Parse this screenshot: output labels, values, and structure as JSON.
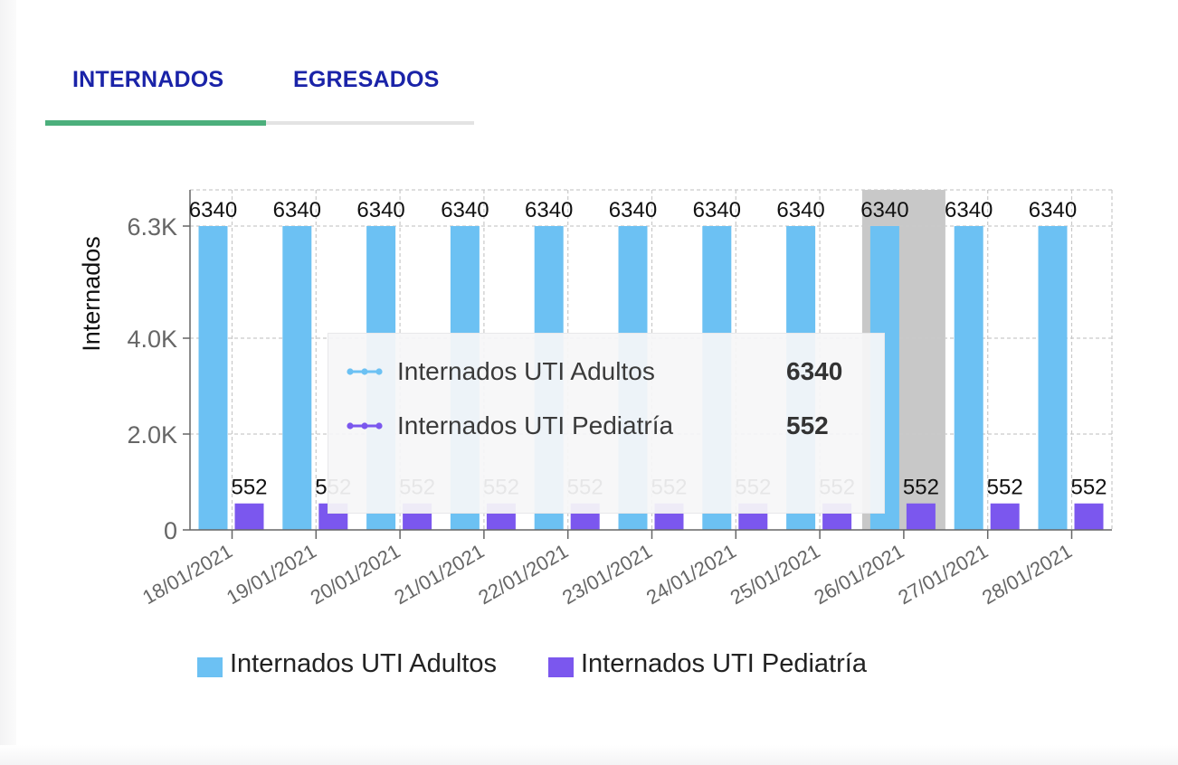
{
  "tabs": [
    {
      "label": "INTERNADOS",
      "active": true
    },
    {
      "label": "EGRESADOS",
      "active": false
    }
  ],
  "colors": {
    "tab_text": "#1a23a8",
    "tab_indicator": "#4caf7c",
    "series_adultos": "#6cc1f3",
    "series_pediatria": "#7b57ee",
    "highlight": "#c8c8c8"
  },
  "tooltip": {
    "rows": [
      {
        "label": "Internados UTI Adultos",
        "value": "6340",
        "color": "#6cc1f3"
      },
      {
        "label": "Internados UTI Pediatría",
        "value": "552",
        "color": "#7b57ee"
      }
    ]
  },
  "chart_data": {
    "type": "bar",
    "ylabel": "Internados",
    "ylim": [
      0,
      6340
    ],
    "yticks": [
      {
        "value": 0,
        "label": "0"
      },
      {
        "value": 2000,
        "label": "2.0K"
      },
      {
        "value": 4000,
        "label": "4.0K"
      },
      {
        "value": 6340,
        "label": "6.3K"
      }
    ],
    "grid": true,
    "categories": [
      "18/01/2021",
      "19/01/2021",
      "20/01/2021",
      "21/01/2021",
      "22/01/2021",
      "23/01/2021",
      "24/01/2021",
      "25/01/2021",
      "26/01/2021",
      "27/01/2021",
      "28/01/2021"
    ],
    "series": [
      {
        "name": "Internados UTI Adultos",
        "color": "#6cc1f3",
        "values": [
          6340,
          6340,
          6340,
          6340,
          6340,
          6340,
          6340,
          6340,
          6340,
          6340,
          6340
        ]
      },
      {
        "name": "Internados UTI Pediatría",
        "color": "#7b57ee",
        "values": [
          552,
          552,
          552,
          552,
          552,
          552,
          552,
          552,
          552,
          552,
          552
        ]
      }
    ],
    "highlighted_category": "26/01/2021",
    "legend_position": "bottom"
  }
}
